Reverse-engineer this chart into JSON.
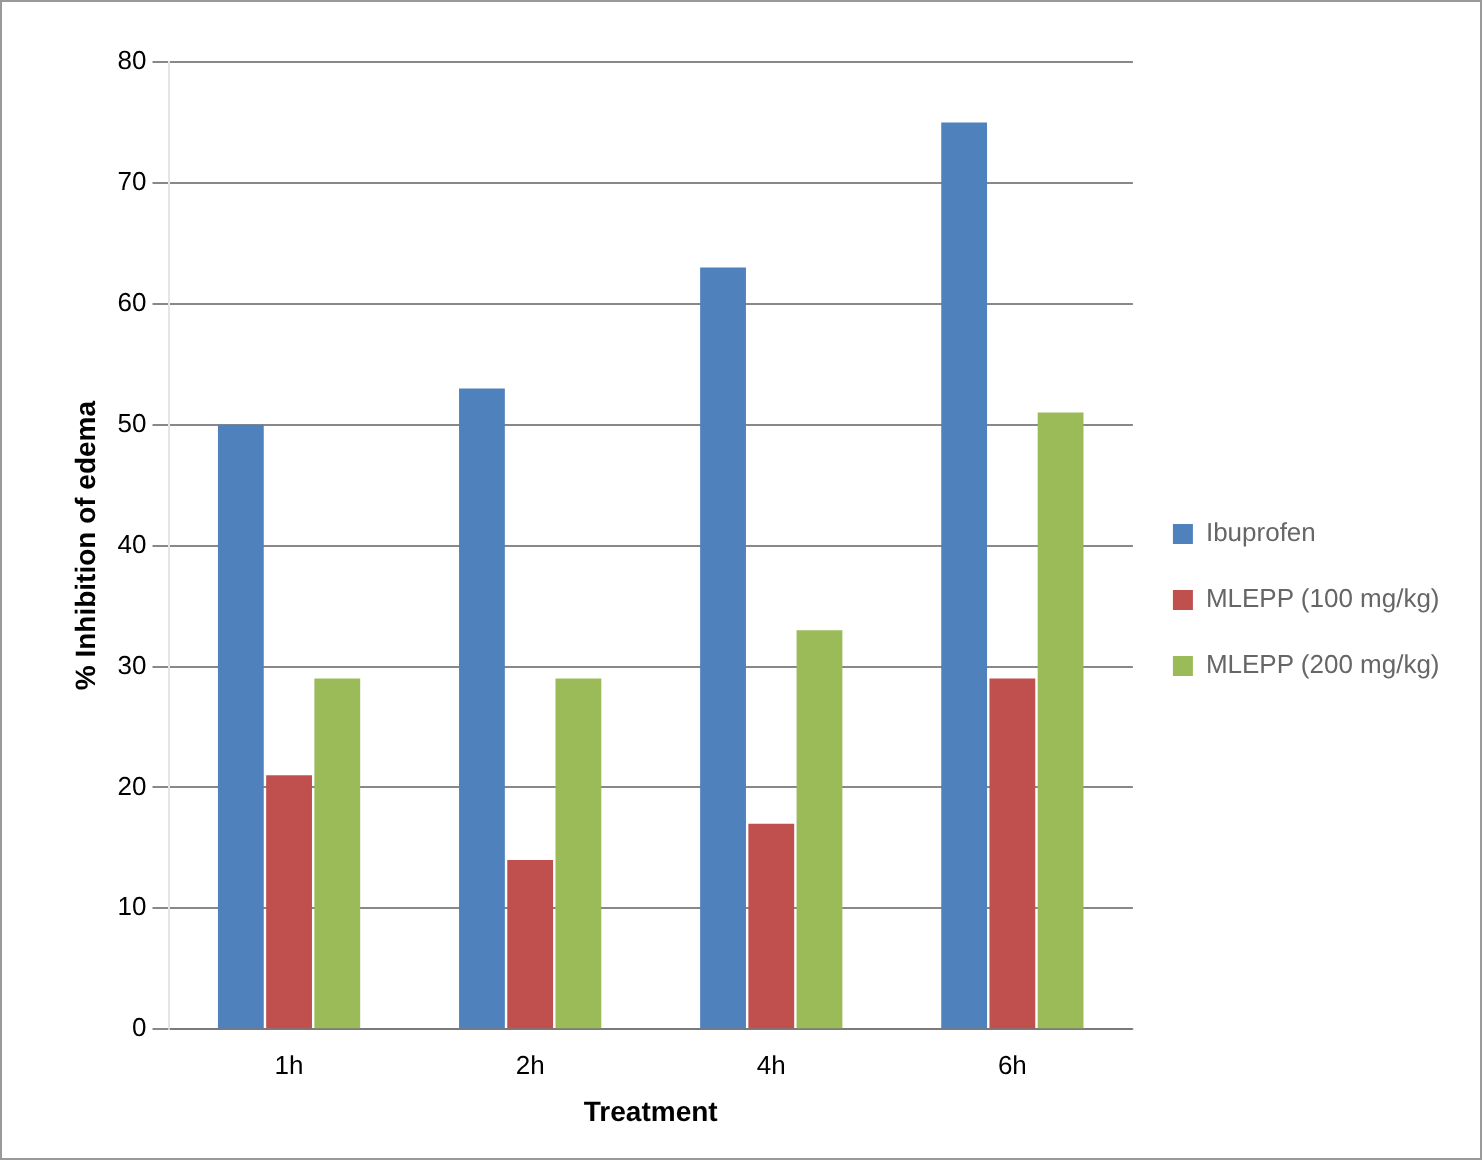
{
  "chart_data": {
    "type": "bar",
    "xlabel": "Treatment",
    "ylabel": "% Inhibition of edema",
    "categories": [
      "1h",
      "2h",
      "4h",
      "6h"
    ],
    "series": [
      {
        "name": "Ibuprofen",
        "color": "#4f81bd",
        "values": [
          50,
          53,
          63,
          75
        ]
      },
      {
        "name": "MLEPP (100 mg/kg)",
        "color": "#c0504d",
        "values": [
          21,
          14,
          17,
          29
        ]
      },
      {
        "name": "MLEPP (200 mg/kg)",
        "color": "#9bbb59",
        "values": [
          29,
          29,
          33,
          51
        ]
      }
    ],
    "ylim": [
      0,
      80
    ],
    "yticks": [
      0,
      10,
      20,
      30,
      40,
      50,
      60,
      70,
      80
    ],
    "grid": "y",
    "legend": "right"
  }
}
